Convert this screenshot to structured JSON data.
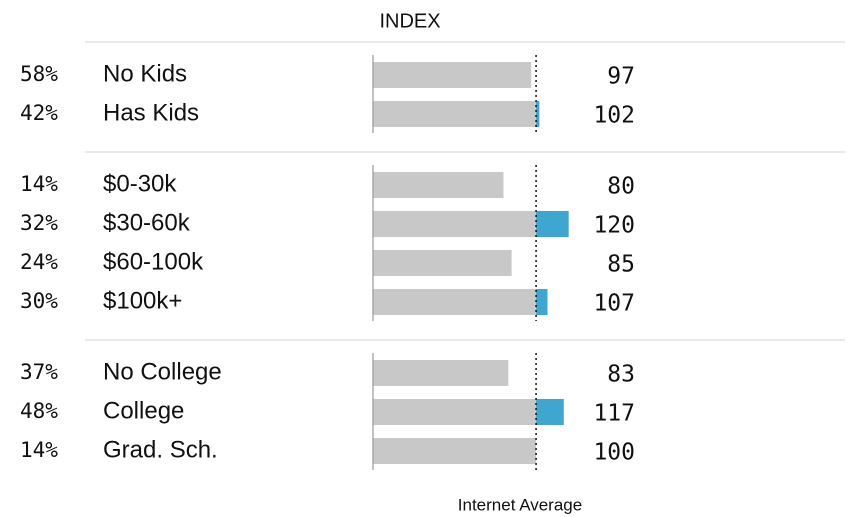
{
  "chart_data": {
    "type": "bar",
    "orientation": "horizontal",
    "title": "INDEX",
    "xlim": [
      0,
      130
    ],
    "reference": 100,
    "reference_label": "Internet Average",
    "base_color": "#c8c8c8",
    "above_color": "#3fa6cf",
    "groups": [
      {
        "shares": [
          "58%",
          "42%"
        ],
        "categories": [
          "No Kids",
          "Has Kids"
        ],
        "values": [
          97,
          102
        ]
      },
      {
        "shares": [
          "14%",
          "32%",
          "24%",
          "30%"
        ],
        "categories": [
          "$0-30k",
          "$30-60k",
          "$60-100k",
          "$100k+"
        ],
        "values": [
          80,
          120,
          85,
          107
        ]
      },
      {
        "shares": [
          "37%",
          "48%",
          "14%"
        ],
        "categories": [
          "No College",
          "College",
          "Grad. Sch."
        ],
        "values": [
          83,
          117,
          100
        ]
      }
    ]
  }
}
